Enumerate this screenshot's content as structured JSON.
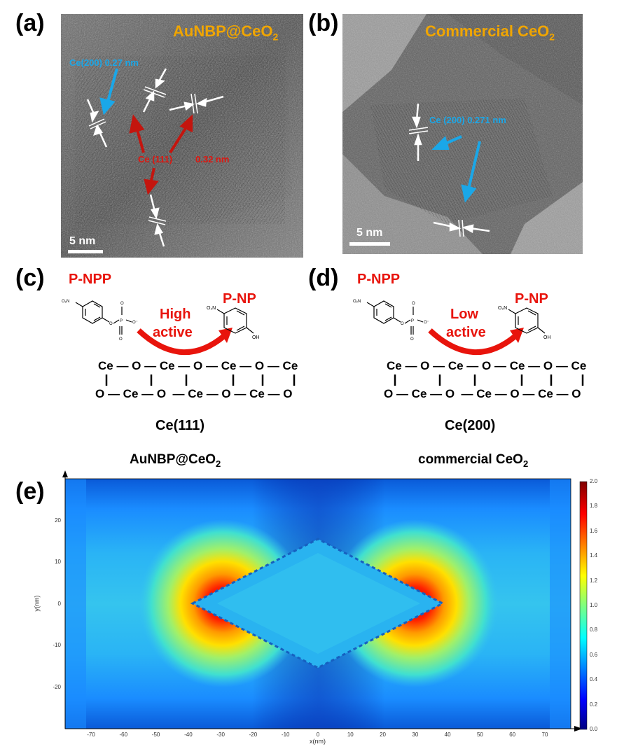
{
  "panels": {
    "a": {
      "label": "(a)",
      "title": "AuNBP@CeO",
      "title_sub": "2",
      "blue_label": "Ce(200)  0.27 nm",
      "red_label_1": "Ce (111)",
      "red_label_2": "0.32 nm",
      "scale": "5 nm"
    },
    "b": {
      "label": "(b)",
      "title": "Commercial CeO",
      "title_sub": "2",
      "blue_label": "Ce (200)  0.271 nm",
      "scale": "5 nm"
    },
    "c": {
      "label": "(c)",
      "reactant": "P-NPP",
      "product": "P-NP",
      "activity_1": "High",
      "activity_2": "active",
      "surface": "Ce(111)"
    },
    "d": {
      "label": "(d)",
      "reactant": "P-NPP",
      "product": "P-NP",
      "activity_1": "Low",
      "activity_2": "active",
      "surface": "Ce(200)"
    },
    "e": {
      "label": "(e)",
      "left_title": "AuNBP@CeO",
      "left_sub": "2",
      "right_title": "commercial CeO",
      "right_sub": "2"
    }
  },
  "lattice": {
    "row1": "Ce — O — Ce — O — Ce — O — Ce",
    "row3": "O — Ce — O  — Ce — O — Ce — O"
  },
  "chart_data": {
    "type": "heatmap",
    "xlabel": "x(nm)",
    "ylabel": "y(nm)",
    "xlim": [
      -78,
      78
    ],
    "ylim": [
      -30,
      30
    ],
    "xticks": [
      -70,
      -60,
      -50,
      -40,
      -30,
      -20,
      -10,
      0,
      10,
      20,
      30,
      40,
      50,
      60,
      70
    ],
    "yticks": [
      20,
      10,
      0,
      -10,
      -20
    ],
    "colorbar": {
      "min": 0.0,
      "max": 2.0,
      "ticks": [
        "2.0",
        "1.8",
        "1.6",
        "1.4",
        "1.2",
        "1.0",
        "0.8",
        "0.6",
        "0.4",
        "0.2",
        "0.0"
      ]
    }
  }
}
